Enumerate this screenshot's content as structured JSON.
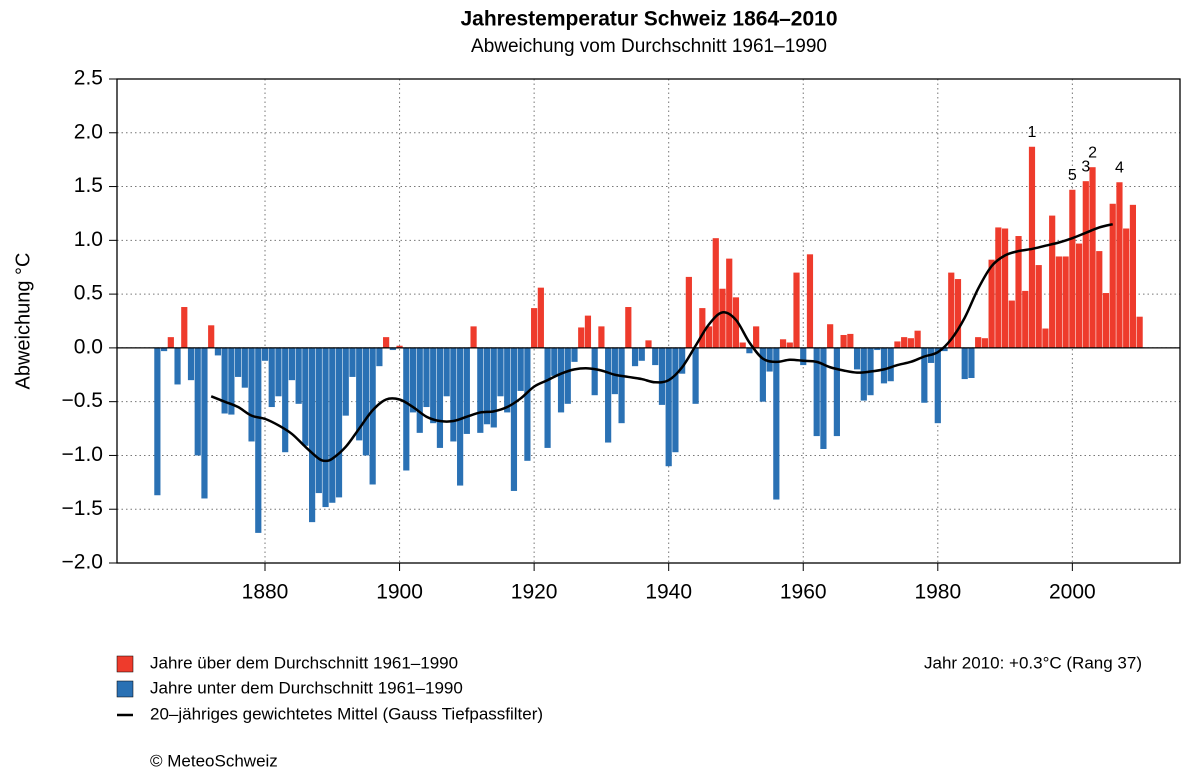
{
  "chart_data": {
    "type": "bar",
    "title": "Jahrestemperatur Schweiz 1864–2010",
    "subtitle": "Abweichung vom Durchschnitt 1961–1990",
    "y_label": "Abweichung °C",
    "x": [
      1864,
      1865,
      1866,
      1867,
      1868,
      1869,
      1870,
      1871,
      1872,
      1873,
      1874,
      1875,
      1876,
      1877,
      1878,
      1879,
      1880,
      1881,
      1882,
      1883,
      1884,
      1885,
      1886,
      1887,
      1888,
      1889,
      1890,
      1891,
      1892,
      1893,
      1894,
      1895,
      1896,
      1897,
      1898,
      1899,
      1900,
      1901,
      1902,
      1903,
      1904,
      1905,
      1906,
      1907,
      1908,
      1909,
      1910,
      1911,
      1912,
      1913,
      1914,
      1915,
      1916,
      1917,
      1918,
      1919,
      1920,
      1921,
      1922,
      1923,
      1924,
      1925,
      1926,
      1927,
      1928,
      1929,
      1930,
      1931,
      1932,
      1933,
      1934,
      1935,
      1936,
      1937,
      1938,
      1939,
      1940,
      1941,
      1942,
      1943,
      1944,
      1945,
      1946,
      1947,
      1948,
      1949,
      1950,
      1951,
      1952,
      1953,
      1954,
      1955,
      1956,
      1957,
      1958,
      1959,
      1960,
      1961,
      1962,
      1963,
      1964,
      1965,
      1966,
      1967,
      1968,
      1969,
      1970,
      1971,
      1972,
      1973,
      1974,
      1975,
      1976,
      1977,
      1978,
      1979,
      1980,
      1981,
      1982,
      1983,
      1984,
      1985,
      1986,
      1987,
      1988,
      1989,
      1990,
      1991,
      1992,
      1993,
      1994,
      1995,
      1996,
      1997,
      1998,
      1999,
      2000,
      2001,
      2002,
      2003,
      2004,
      2005,
      2006,
      2007,
      2008,
      2009,
      2010
    ],
    "values": [
      -1.37,
      -0.03,
      0.1,
      -0.34,
      0.38,
      -0.3,
      -1.0,
      -1.4,
      0.21,
      -0.07,
      -0.61,
      -0.62,
      -0.27,
      -0.37,
      -0.87,
      -1.72,
      -0.12,
      -0.55,
      -0.45,
      -0.97,
      -0.3,
      -0.52,
      -0.91,
      -1.62,
      -1.35,
      -1.48,
      -1.44,
      -1.39,
      -0.63,
      -0.27,
      -0.86,
      -1.0,
      -1.27,
      -0.17,
      0.1,
      -0.02,
      0.02,
      -1.14,
      -0.6,
      -0.79,
      -0.55,
      -0.7,
      -0.93,
      -0.45,
      -0.87,
      -1.28,
      -0.8,
      0.2,
      -0.79,
      -0.71,
      -0.74,
      -0.45,
      -0.6,
      -1.33,
      -0.4,
      -1.05,
      0.37,
      0.56,
      -0.93,
      -0.26,
      -0.6,
      -0.52,
      -0.13,
      0.19,
      0.3,
      -0.44,
      0.2,
      -0.88,
      -0.43,
      -0.7,
      0.38,
      -0.17,
      -0.12,
      0.07,
      -0.16,
      -0.53,
      -1.1,
      -0.97,
      -0.24,
      0.66,
      -0.52,
      0.37,
      0.2,
      1.02,
      0.55,
      0.83,
      0.47,
      0.05,
      -0.05,
      0.2,
      -0.5,
      -0.22,
      -1.41,
      0.08,
      0.05,
      0.7,
      -0.16,
      0.87,
      -0.82,
      -0.94,
      0.22,
      -0.82,
      0.12,
      0.13,
      -0.2,
      -0.49,
      -0.44,
      -0.02,
      -0.33,
      -0.31,
      0.06,
      0.1,
      0.09,
      0.16,
      -0.51,
      -0.14,
      -0.7,
      -0.03,
      0.7,
      0.64,
      -0.29,
      -0.28,
      0.1,
      0.09,
      0.82,
      1.12,
      1.11,
      0.44,
      1.04,
      0.53,
      1.87,
      0.77,
      0.18,
      1.23,
      0.85,
      0.85,
      1.47,
      0.97,
      1.55,
      1.68,
      0.9,
      0.51,
      1.34,
      1.54,
      1.11,
      1.33,
      0.29
    ],
    "positive": {
      "name": "Jahre über dem Durchschnitt 1961–1990",
      "color": "#ee3b2c"
    },
    "negative": {
      "name": "Jahre unter dem Durchschnitt 1961–1990",
      "color": "#2a71b4"
    },
    "smooth": {
      "name": "20–jähriges gewichtetes Mittel (Gauss Tiefpassfilter)",
      "color": "#000000",
      "x": [
        1872,
        1874,
        1876,
        1878,
        1880,
        1882,
        1884,
        1886,
        1888,
        1889,
        1890,
        1892,
        1894,
        1896,
        1898,
        1900,
        1902,
        1904,
        1906,
        1908,
        1910,
        1912,
        1914,
        1916,
        1918,
        1920,
        1922,
        1924,
        1926,
        1928,
        1930,
        1932,
        1934,
        1936,
        1938,
        1940,
        1942,
        1944,
        1946,
        1948,
        1950,
        1952,
        1954,
        1956,
        1958,
        1960,
        1962,
        1964,
        1966,
        1968,
        1970,
        1972,
        1974,
        1976,
        1978,
        1980,
        1982,
        1984,
        1986,
        1988,
        1990,
        1992,
        1994,
        1996,
        1998,
        2000,
        2002,
        2004,
        2006
      ],
      "values": [
        -0.45,
        -0.5,
        -0.55,
        -0.63,
        -0.66,
        -0.72,
        -0.8,
        -0.92,
        -1.03,
        -1.05,
        -1.03,
        -0.92,
        -0.75,
        -0.58,
        -0.48,
        -0.48,
        -0.55,
        -0.64,
        -0.68,
        -0.68,
        -0.64,
        -0.6,
        -0.59,
        -0.55,
        -0.47,
        -0.36,
        -0.3,
        -0.24,
        -0.2,
        -0.19,
        -0.21,
        -0.25,
        -0.27,
        -0.29,
        -0.32,
        -0.3,
        -0.18,
        0.02,
        0.22,
        0.33,
        0.26,
        0.05,
        -0.1,
        -0.13,
        -0.11,
        -0.12,
        -0.13,
        -0.18,
        -0.21,
        -0.23,
        -0.22,
        -0.2,
        -0.16,
        -0.13,
        -0.08,
        -0.04,
        0.08,
        0.28,
        0.55,
        0.76,
        0.86,
        0.9,
        0.92,
        0.95,
        0.98,
        1.02,
        1.07,
        1.12,
        1.15
      ]
    },
    "rank_labels": [
      {
        "label": "1",
        "year": 1994
      },
      {
        "label": "2",
        "year": 2003
      },
      {
        "label": "3",
        "year": 2002
      },
      {
        "label": "4",
        "year": 2007
      },
      {
        "label": "5",
        "year": 2000
      }
    ],
    "note": "Jahr 2010: +0.3°C (Rang 37)",
    "credit": "© MeteoSchweiz",
    "xlim": [
      1858,
      2016
    ],
    "xticks": [
      1880,
      1900,
      1920,
      1940,
      1960,
      1980,
      2000
    ],
    "ylim": [
      -2.0,
      2.5
    ],
    "yticks": [
      2.5,
      {
        "value": 2.0,
        "label": "2.0"
      },
      1.5,
      {
        "value": 1.0,
        "label": "1.0"
      },
      0.5,
      {
        "value": 0.0,
        "label": "0.0"
      },
      {
        "value": -0.5,
        "label": "−0.5"
      },
      {
        "value": -1.0,
        "label": "−1.0"
      },
      {
        "value": -1.5,
        "label": "−1.5"
      },
      {
        "value": -2.0,
        "label": "−2.0"
      }
    ],
    "grid": true
  }
}
